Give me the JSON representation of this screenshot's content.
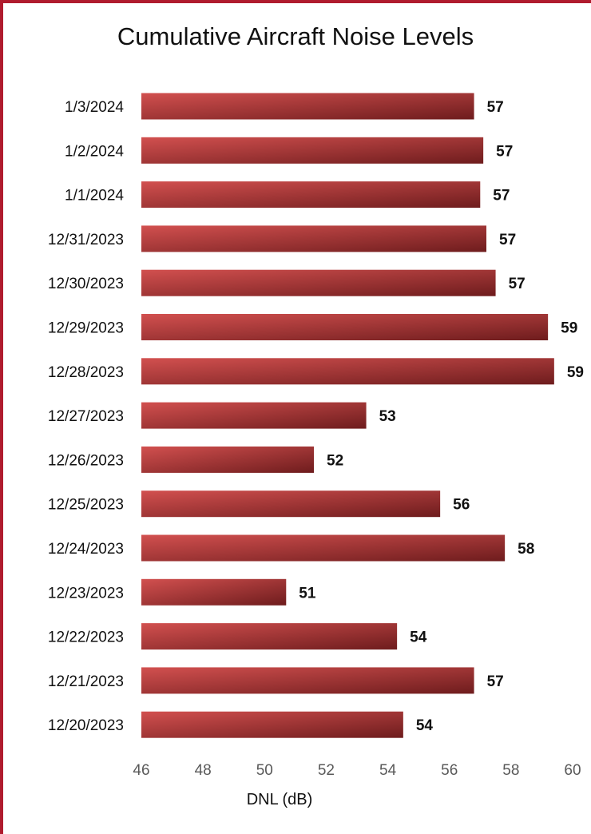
{
  "chart_data": {
    "type": "bar",
    "orientation": "horizontal",
    "title": "Cumulative Aircraft Noise Levels",
    "xlabel": "DNL (dB)",
    "ylabel": "",
    "categories": [
      "1/3/2024",
      "1/2/2024",
      "1/1/2024",
      "12/31/2023",
      "12/30/2023",
      "12/29/2023",
      "12/28/2023",
      "12/27/2023",
      "12/26/2023",
      "12/25/2023",
      "12/24/2023",
      "12/23/2023",
      "12/22/2023",
      "12/21/2023",
      "12/20/2023"
    ],
    "values": [
      56.8,
      57.1,
      57.0,
      57.2,
      57.5,
      59.2,
      59.4,
      53.3,
      51.6,
      55.7,
      57.8,
      50.7,
      54.3,
      56.8,
      54.5
    ],
    "data_labels": [
      "57",
      "57",
      "57",
      "57",
      "57",
      "59",
      "59",
      "53",
      "52",
      "56",
      "58",
      "51",
      "54",
      "57",
      "54"
    ],
    "xlim": [
      46,
      60
    ],
    "xticks": [
      "46",
      "48",
      "50",
      "52",
      "54",
      "56",
      "58",
      "60"
    ],
    "grid": false,
    "legend": "none",
    "colors": {
      "bar_light": "#d2504f",
      "bar_dark": "#6e1c1d",
      "frame": "#b01c2e",
      "tick": "#595959"
    }
  }
}
